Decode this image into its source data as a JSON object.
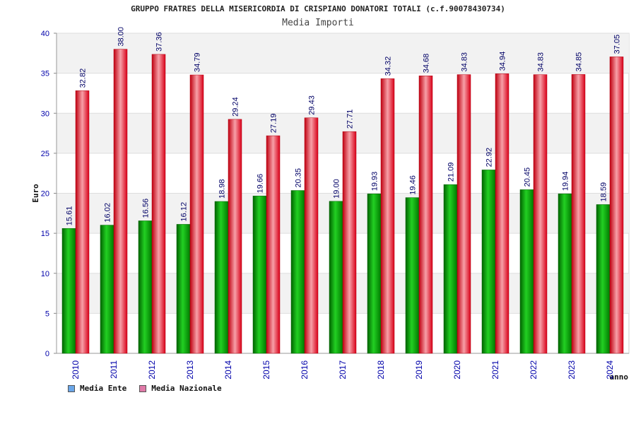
{
  "title": "GRUPPO FRATRES DELLA MISERICORDIA DI CRISPIANO DONATORI TOTALI (c.f.90078430734)",
  "subtitle": "Media Importi",
  "legend": [
    {
      "label": "Media Ente",
      "color": "#6aa6e8"
    },
    {
      "label": "Media Nazionale",
      "color": "#e07aa8"
    }
  ],
  "colors": {
    "ente": "#00a000",
    "nazionale": "#e8202f",
    "axis_text": "#0000aa",
    "grid_band": "#f2f2f2"
  },
  "chart_data": {
    "type": "bar",
    "title": "GRUPPO FRATRES DELLA MISERICORDIA DI CRISPIANO DONATORI TOTALI (c.f.90078430734)",
    "subtitle": "Media Importi",
    "xlabel": "anno",
    "ylabel": "Euro",
    "ylim": [
      0,
      40
    ],
    "yticks": [
      0,
      5,
      10,
      15,
      20,
      25,
      30,
      35,
      40
    ],
    "grid": true,
    "legend_position": "bottom-left",
    "categories": [
      "2010",
      "2011",
      "2012",
      "2013",
      "2014",
      "2015",
      "2016",
      "2017",
      "2018",
      "2019",
      "2020",
      "2021",
      "2022",
      "2023",
      "2024"
    ],
    "series": [
      {
        "name": "Media Ente",
        "values": [
          15.61,
          16.02,
          16.56,
          16.12,
          18.98,
          19.66,
          20.35,
          19.0,
          19.93,
          19.46,
          21.09,
          22.92,
          20.45,
          19.94,
          18.59
        ]
      },
      {
        "name": "Media Nazionale",
        "values": [
          32.82,
          38.0,
          37.36,
          34.79,
          29.24,
          27.19,
          29.43,
          27.71,
          34.32,
          34.68,
          34.83,
          34.94,
          34.83,
          34.85,
          37.05
        ]
      }
    ]
  }
}
